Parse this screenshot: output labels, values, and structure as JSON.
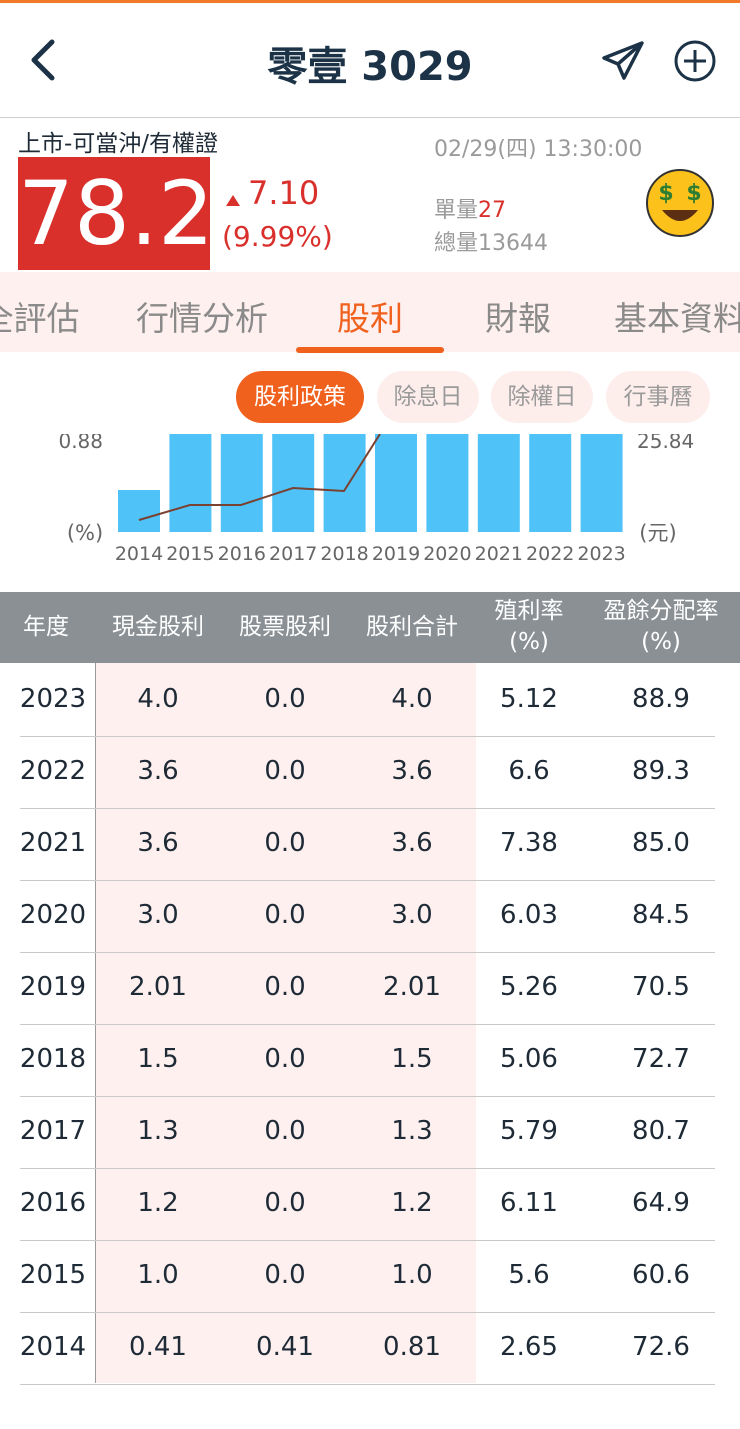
{
  "header": {
    "title": "零壹 3029"
  },
  "quote": {
    "market": "上市-可當沖/有權證",
    "price": "78.2",
    "change": "7.10",
    "change_pct": "(9.99%)",
    "time": "02/29(四) 13:30:00",
    "volume_label": "單量",
    "volume": "27",
    "total_label": "總量",
    "total": "13644"
  },
  "tabs": [
    "全評估",
    "行情分析",
    "股利",
    "財報",
    "基本資料"
  ],
  "sub_tabs": [
    "股利政策",
    "除息日",
    "除權日",
    "行事曆"
  ],
  "chart": {
    "left_axis_top": "0.88",
    "left_axis_unit": "(%)",
    "right_axis_top": "25.84",
    "right_axis_unit": "(元)",
    "years": [
      "2014",
      "2015",
      "2016",
      "2017",
      "2018",
      "2019",
      "2020",
      "2021",
      "2022",
      "2023"
    ]
  },
  "table": {
    "columns": [
      [
        "年度"
      ],
      [
        "現金股利"
      ],
      [
        "股票股利"
      ],
      [
        "股利合計"
      ],
      [
        "殖利率",
        "(%)"
      ],
      [
        "盈餘分配率",
        "(%)"
      ]
    ],
    "rows": [
      [
        "2023",
        "4.0",
        "0.0",
        "4.0",
        "5.12",
        "88.9"
      ],
      [
        "2022",
        "3.6",
        "0.0",
        "3.6",
        "6.6",
        "89.3"
      ],
      [
        "2021",
        "3.6",
        "0.0",
        "3.6",
        "7.38",
        "85.0"
      ],
      [
        "2020",
        "3.0",
        "0.0",
        "3.0",
        "6.03",
        "84.5"
      ],
      [
        "2019",
        "2.01",
        "0.0",
        "2.01",
        "5.26",
        "70.5"
      ],
      [
        "2018",
        "1.5",
        "0.0",
        "1.5",
        "5.06",
        "72.7"
      ],
      [
        "2017",
        "1.3",
        "0.0",
        "1.3",
        "5.79",
        "80.7"
      ],
      [
        "2016",
        "1.2",
        "0.0",
        "1.2",
        "6.11",
        "64.9"
      ],
      [
        "2015",
        "1.0",
        "0.0",
        "1.0",
        "5.6",
        "60.6"
      ],
      [
        "2014",
        "0.41",
        "0.41",
        "0.81",
        "2.65",
        "72.6"
      ]
    ]
  }
}
